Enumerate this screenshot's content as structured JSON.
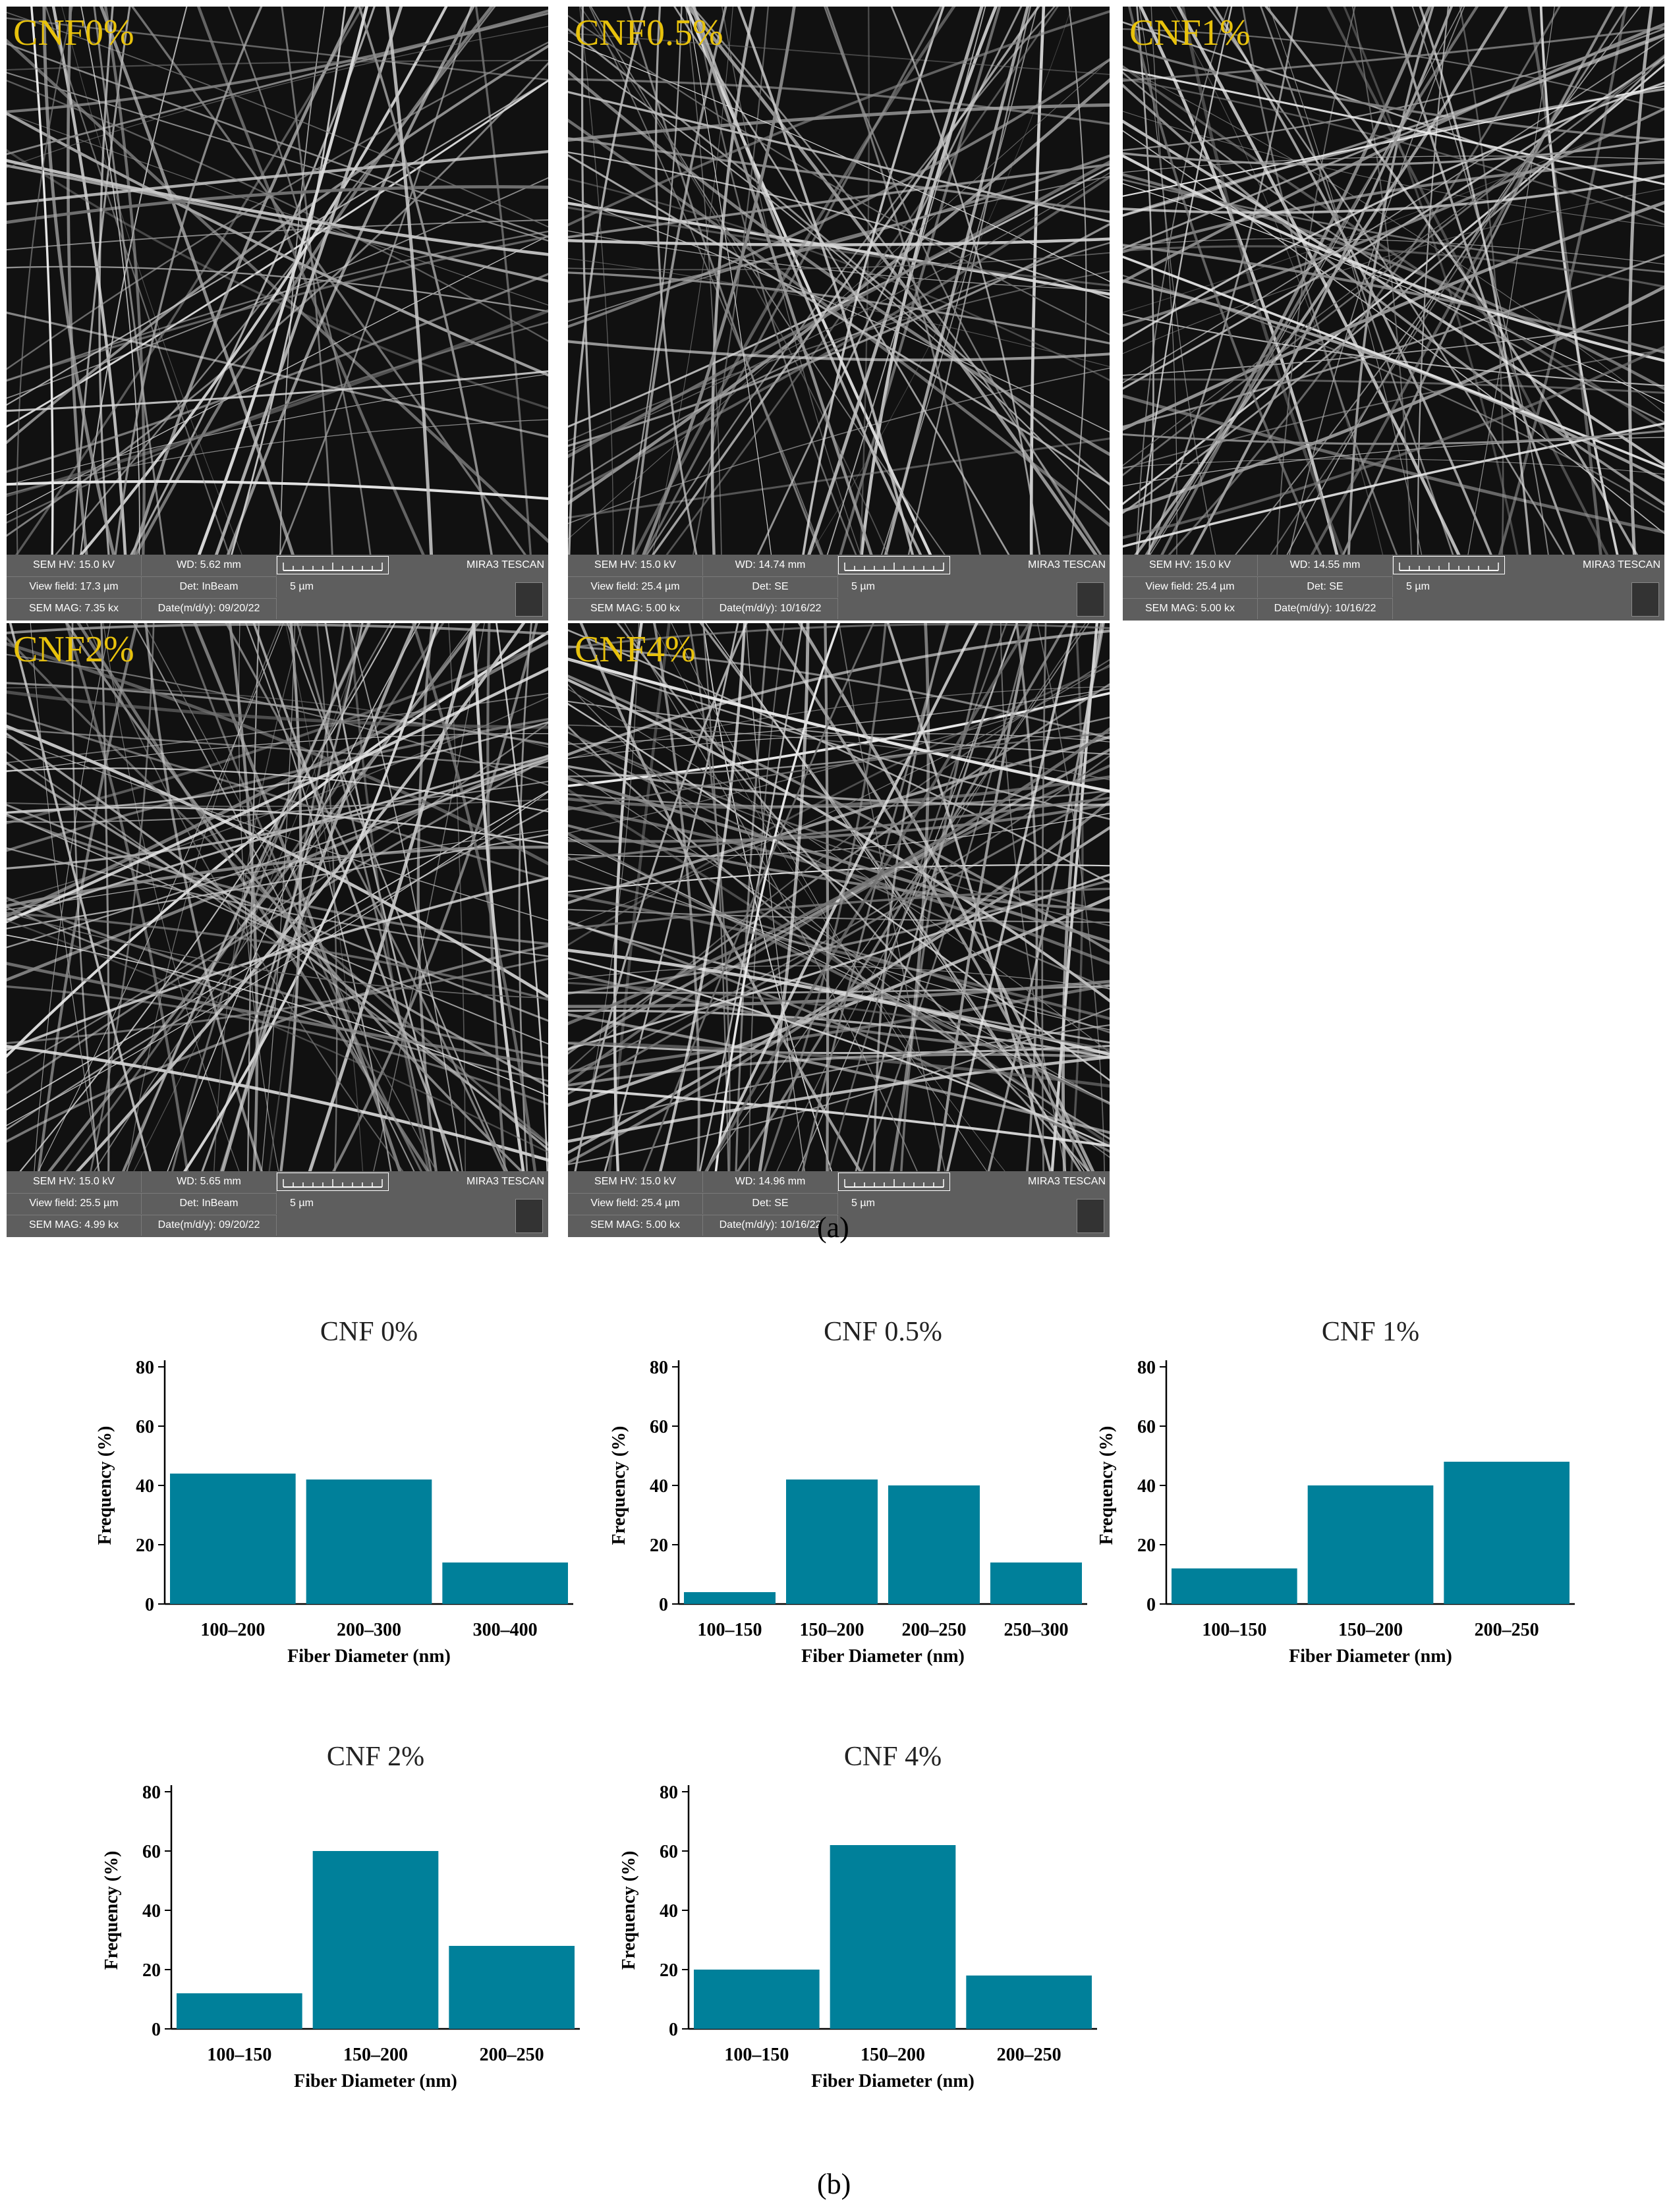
{
  "sem_panels": [
    {
      "label": "CNF0%",
      "hv": "SEM HV: 15.0 kV",
      "wd": "WD: 5.62 mm",
      "vf": "View field: 17.3 µm",
      "det": "Det: InBeam",
      "mag": "SEM MAG: 7.35 kx",
      "date": "Date(m/d/y): 09/20/22",
      "scale": "5 µm",
      "brand": "MIRA3 TESCAN"
    },
    {
      "label": "CNF0.5%",
      "hv": "SEM HV: 15.0 kV",
      "wd": "WD: 14.74 mm",
      "vf": "View field: 25.4 µm",
      "det": "Det: SE",
      "mag": "SEM MAG: 5.00 kx",
      "date": "Date(m/d/y): 10/16/22",
      "scale": "5 µm",
      "brand": "MIRA3 TESCAN"
    },
    {
      "label": "CNF1%",
      "hv": "SEM HV: 15.0 kV",
      "wd": "WD: 14.55 mm",
      "vf": "View field: 25.4 µm",
      "det": "Det: SE",
      "mag": "SEM MAG: 5.00 kx",
      "date": "Date(m/d/y): 10/16/22",
      "scale": "5 µm",
      "brand": "MIRA3 TESCAN"
    },
    {
      "label": "CNF2%",
      "hv": "SEM HV: 15.0 kV",
      "wd": "WD: 5.65 mm",
      "vf": "View field: 25.5 µm",
      "det": "Det: InBeam",
      "mag": "SEM MAG: 4.99 kx",
      "date": "Date(m/d/y): 09/20/22",
      "scale": "5 µm",
      "brand": "MIRA3 TESCAN"
    },
    {
      "label": "CNF4%",
      "hv": "SEM HV: 15.0 kV",
      "wd": "WD: 14.96 mm",
      "vf": "View field: 25.4 µm",
      "det": "Det: SE",
      "mag": "SEM MAG: 5.00 kx",
      "date": "Date(m/d/y): 10/16/22",
      "scale": "5 µm",
      "brand": "MIRA3 TESCAN"
    }
  ],
  "captions": {
    "a": "(a)",
    "b": "(b)"
  },
  "chart_data": [
    {
      "type": "bar",
      "title": "CNF 0%",
      "categories": [
        "100–200",
        "200–300",
        "300–400"
      ],
      "values": [
        44,
        42,
        14
      ],
      "xlabel": "Fiber Diameter (nm)",
      "ylabel": "Frequency (%)",
      "ylim": [
        0,
        80
      ],
      "yticks": [
        0,
        20,
        40,
        60,
        80
      ],
      "color": "#00809a"
    },
    {
      "type": "bar",
      "title": "CNF 0.5%",
      "categories": [
        "100–150",
        "150–200",
        "200–250",
        "250–300"
      ],
      "values": [
        4,
        42,
        40,
        14
      ],
      "xlabel": "Fiber Diameter (nm)",
      "ylabel": "Frequency (%)",
      "ylim": [
        0,
        80
      ],
      "yticks": [
        0,
        20,
        40,
        60,
        80
      ],
      "color": "#00809a"
    },
    {
      "type": "bar",
      "title": "CNF 1%",
      "categories": [
        "100–150",
        "150–200",
        "200–250"
      ],
      "values": [
        12,
        40,
        48
      ],
      "xlabel": "Fiber Diameter (nm)",
      "ylabel": "Frequency (%)",
      "ylim": [
        0,
        80
      ],
      "yticks": [
        0,
        20,
        40,
        60,
        80
      ],
      "color": "#00809a"
    },
    {
      "type": "bar",
      "title": "CNF 2%",
      "categories": [
        "100–150",
        "150–200",
        "200–250"
      ],
      "values": [
        12,
        60,
        28
      ],
      "xlabel": "Fiber Diameter (nm)",
      "ylabel": "Frequency (%)",
      "ylim": [
        0,
        80
      ],
      "yticks": [
        0,
        20,
        40,
        60,
        80
      ],
      "color": "#00809a"
    },
    {
      "type": "bar",
      "title": "CNF 4%",
      "categories": [
        "100–150",
        "150–200",
        "200–250"
      ],
      "values": [
        20,
        62,
        18
      ],
      "xlabel": "Fiber Diameter (nm)",
      "ylabel": "Frequency (%)",
      "ylim": [
        0,
        80
      ],
      "yticks": [
        0,
        20,
        40,
        60,
        80
      ],
      "color": "#00809a"
    }
  ]
}
